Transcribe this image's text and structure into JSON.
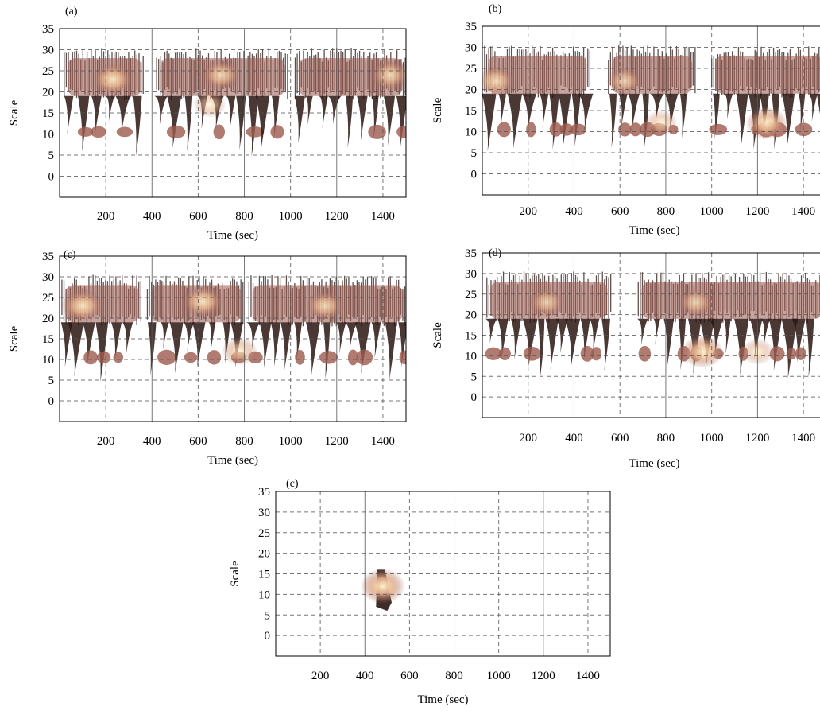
{
  "chart_data": [
    {
      "panel_label": "(a)",
      "type": "heatmap",
      "xlabel": "Time (sec)",
      "ylabel": "Scale",
      "xlim": [
        0,
        1500
      ],
      "ylim": [
        -5,
        35
      ],
      "xticks": [
        200,
        400,
        600,
        800,
        1000,
        1200,
        1400
      ],
      "yticks": [
        0,
        5,
        10,
        15,
        20,
        25,
        30,
        35
      ],
      "grid": true,
      "segments": [
        [
          20,
          370
        ],
        [
          420,
          990
        ],
        [
          1020,
          1500
        ]
      ],
      "hotspots": [
        {
          "t": 230,
          "scale": 23,
          "intensity": 0.9
        },
        {
          "t": 650,
          "scale": 17,
          "intensity": 0.6
        },
        {
          "t": 700,
          "scale": 24,
          "intensity": 0.8
        },
        {
          "t": 1430,
          "scale": 24,
          "intensity": 0.8
        }
      ]
    },
    {
      "panel_label": "(b)",
      "type": "heatmap",
      "xlabel": "Time (sec)",
      "ylabel": "Scale",
      "xlim": [
        0,
        1500
      ],
      "ylim": [
        -5,
        35
      ],
      "xticks": [
        200,
        400,
        600,
        800,
        1000,
        1200,
        1400
      ],
      "yticks": [
        0,
        5,
        10,
        15,
        20,
        25,
        30,
        35
      ],
      "grid": true,
      "segments": [
        [
          10,
          470
        ],
        [
          550,
          930
        ],
        [
          1000,
          1500
        ]
      ],
      "hotspots": [
        {
          "t": 60,
          "scale": 22,
          "intensity": 0.8
        },
        {
          "t": 620,
          "scale": 22,
          "intensity": 0.7
        },
        {
          "t": 780,
          "scale": 12,
          "intensity": 0.6
        },
        {
          "t": 1240,
          "scale": 12,
          "intensity": 0.9
        }
      ]
    },
    {
      "panel_label": "(c)",
      "type": "heatmap",
      "xlabel": "Time (sec)",
      "ylabel": "Scale",
      "xlim": [
        0,
        1500
      ],
      "ylim": [
        -5,
        35
      ],
      "xticks": [
        200,
        400,
        600,
        800,
        1000,
        1200,
        1400
      ],
      "yticks": [
        0,
        5,
        10,
        15,
        20,
        25,
        30,
        35
      ],
      "grid": true,
      "segments": [
        [
          10,
          360
        ],
        [
          380,
          800
        ],
        [
          820,
          1500
        ]
      ],
      "hotspots": [
        {
          "t": 100,
          "scale": 23,
          "intensity": 0.9
        },
        {
          "t": 620,
          "scale": 24,
          "intensity": 0.9
        },
        {
          "t": 780,
          "scale": 12,
          "intensity": 0.7
        },
        {
          "t": 1150,
          "scale": 23,
          "intensity": 0.8
        }
      ]
    },
    {
      "panel_label": "(d)",
      "type": "heatmap",
      "xlabel": "Time (sec)",
      "ylabel": "Scale",
      "xlim": [
        0,
        1500
      ],
      "ylim": [
        -5,
        35
      ],
      "xticks": [
        200,
        400,
        600,
        800,
        1000,
        1200,
        1400
      ],
      "yticks": [
        0,
        5,
        10,
        15,
        20,
        25,
        30,
        35
      ],
      "grid": true,
      "segments": [
        [
          20,
          560
        ],
        [
          680,
          1500
        ]
      ],
      "hotspots": [
        {
          "t": 280,
          "scale": 23,
          "intensity": 0.7
        },
        {
          "t": 930,
          "scale": 23,
          "intensity": 0.7
        },
        {
          "t": 960,
          "scale": 11,
          "intensity": 0.9
        },
        {
          "t": 1200,
          "scale": 11,
          "intensity": 0.6
        }
      ]
    },
    {
      "panel_label": "(c)",
      "type": "heatmap",
      "xlabel": "Time (sec)",
      "ylabel": "Scale",
      "xlim": [
        0,
        1500
      ],
      "ylim": [
        -5,
        35
      ],
      "xticks": [
        200,
        400,
        600,
        800,
        1000,
        1200,
        1400
      ],
      "yticks": [
        0,
        5,
        10,
        15,
        20,
        25,
        30,
        35
      ],
      "grid": true,
      "segments": [],
      "hotspots": [
        {
          "t": 480,
          "scale": 12,
          "intensity": 1.0
        }
      ]
    }
  ],
  "colors": {
    "grid": "#555555",
    "axis": "#000000",
    "dark": "#2a1512",
    "mid": "#9c5a4e",
    "light": "#e8b48f",
    "hot": "#fff2c8"
  }
}
